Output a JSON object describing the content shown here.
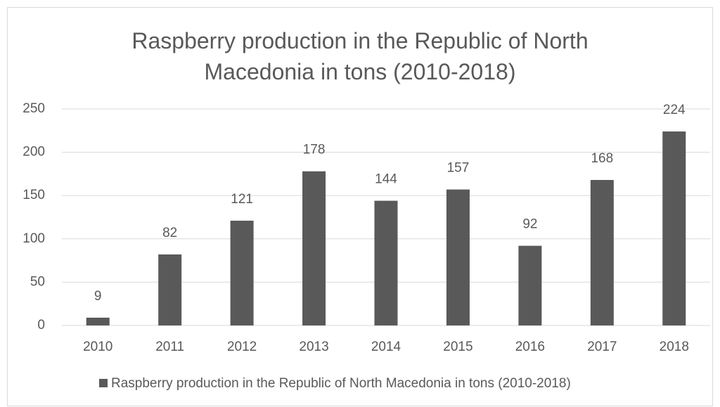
{
  "chart_data": {
    "type": "bar",
    "title": "Raspberry production in the Republic of North Macedonia in tons (2010-2018)",
    "categories": [
      "2010",
      "2011",
      "2012",
      "2013",
      "2014",
      "2015",
      "2016",
      "2017",
      "2018"
    ],
    "series": [
      {
        "name": "Raspberry production in the Republic of North Macedonia in tons (2010-2018)",
        "color": "#595959",
        "values": [
          9,
          82,
          121,
          178,
          144,
          157,
          92,
          168,
          224
        ]
      }
    ],
    "ylim": [
      0,
      250
    ],
    "yticks": [
      0,
      50,
      100,
      150,
      200,
      250
    ],
    "grid": true,
    "legend": "bottom"
  }
}
